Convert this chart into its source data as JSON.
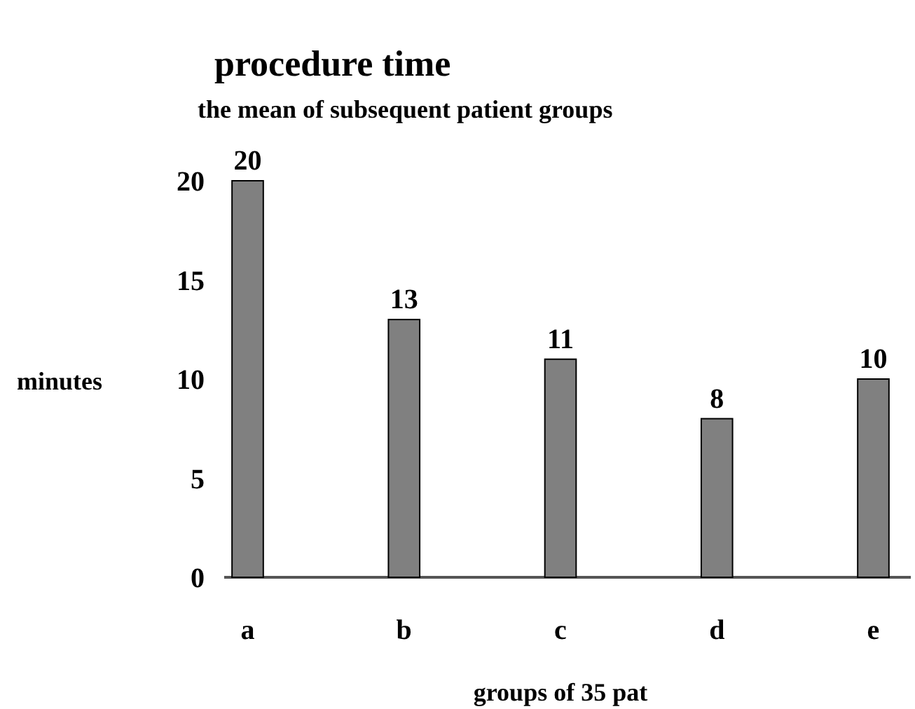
{
  "chart_data": {
    "type": "bar",
    "title": "procedure time",
    "subtitle": "the mean of subsequent patient groups",
    "xlabel": "groups of 35 pat",
    "ylabel": "minutes",
    "categories": [
      "a",
      "b",
      "c",
      "d",
      "e"
    ],
    "values": [
      20,
      13,
      11,
      8,
      10
    ],
    "color": "#808080",
    "ylim": [
      0,
      20
    ],
    "yticks": [
      0,
      5,
      10,
      15,
      20
    ],
    "data_labels": true,
    "grid": false
  }
}
